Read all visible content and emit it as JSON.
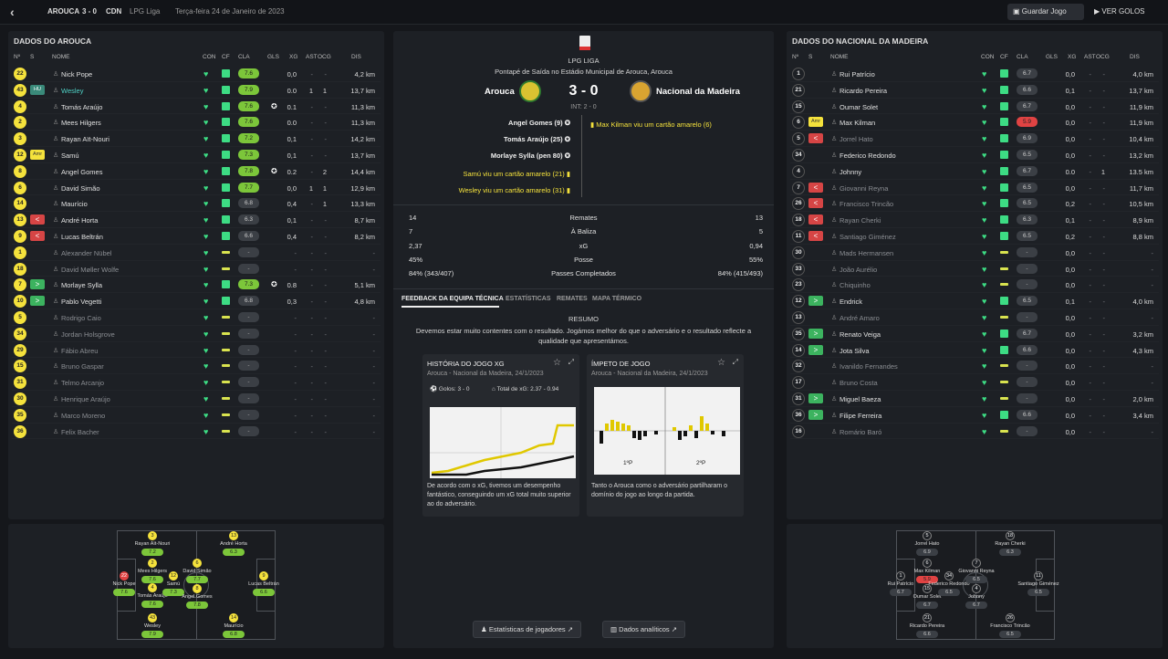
{
  "topbar": {
    "team": "AROUCA",
    "score": "3 - 0",
    "opp": "CDN",
    "comp": "LPG Liga",
    "date": "Terça-feira 24 de Janeiro de 2023",
    "save": "Guardar Jogo",
    "goals": "VER GOLOS"
  },
  "headers": {
    "no": "Nº",
    "s": "S",
    "nome": "NOME",
    "con": "CON",
    "cf": "CF",
    "cla": "CLA",
    "gls": "GLS",
    "xg": "XG",
    "ast": "AST",
    "ocg": "OCG",
    "dis": "DIS"
  },
  "left": {
    "title": "DADOS DO AROUCA",
    "players": [
      {
        "no": "22",
        "name": "Nick Pope",
        "cla": "7.6",
        "xg": "0,0",
        "ast": "-",
        "ocg": "-",
        "dis": "4,2 km",
        "badge": ""
      },
      {
        "no": "43",
        "name": "Wesley",
        "cla": "7.9",
        "xg": "0.0",
        "ast": "1",
        "ocg": "1",
        "dis": "13,7 km",
        "badge": "tel",
        "btxt": "HU"
      },
      {
        "no": "4",
        "name": "Tomás Araújo",
        "cla": "7.6",
        "xg": "0.1",
        "ast": "-",
        "ocg": "-",
        "dis": "11,3 km",
        "badge": "",
        "gl": "⚽"
      },
      {
        "no": "2",
        "name": "Mees Hilgers",
        "cla": "7.6",
        "xg": "0.0",
        "ast": "-",
        "ocg": "-",
        "dis": "11,3 km",
        "badge": ""
      },
      {
        "no": "3",
        "name": "Rayan Aït-Nouri",
        "cla": "7.2",
        "xg": "0,1",
        "ast": "-",
        "ocg": "-",
        "dis": "14,2 km",
        "badge": ""
      },
      {
        "no": "12",
        "name": "Samú",
        "cla": "7.3",
        "xg": "0,1",
        "ast": "-",
        "ocg": "-",
        "dis": "13,7 km",
        "badge": "amr",
        "btxt": "Amr"
      },
      {
        "no": "8",
        "name": "Angel Gomes",
        "cla": "7.8",
        "xg": "0.2",
        "ast": "-",
        "ocg": "2",
        "dis": "14,4 km",
        "badge": "",
        "gl": "⚽"
      },
      {
        "no": "6",
        "name": "David Simão",
        "cla": "7.7",
        "xg": "0,0",
        "ast": "1",
        "ocg": "1",
        "dis": "12,9 km",
        "badge": ""
      },
      {
        "no": "14",
        "name": "Maurício",
        "cla": "6.8",
        "xg": "0,4",
        "ast": "-",
        "ocg": "1",
        "dis": "13,3 km",
        "badge": "",
        "g": 1
      },
      {
        "no": "13",
        "name": "André Horta",
        "cla": "6.3",
        "xg": "0,1",
        "ast": "-",
        "ocg": "-",
        "dis": "8,7 km",
        "badge": "off",
        "btxt": "<",
        "g": 1
      },
      {
        "no": "9",
        "name": "Lucas Beltrán",
        "cla": "6.6",
        "xg": "0,4",
        "ast": "-",
        "ocg": "-",
        "dis": "8,2 km",
        "badge": "off",
        "btxt": "<",
        "g": 1
      },
      {
        "no": "1",
        "name": "Alexander Nübel",
        "cla": "-",
        "xg": "-",
        "ast": "-",
        "ocg": "-",
        "dis": "-",
        "badge": "",
        "dim": 1
      },
      {
        "no": "18",
        "name": "David Møller Wolfe",
        "cla": "-",
        "xg": "-",
        "ast": "-",
        "ocg": "-",
        "dis": "-",
        "badge": "",
        "dim": 1
      },
      {
        "no": "7",
        "name": "Morlaye Sylla",
        "cla": "7.3",
        "xg": "0.8",
        "ast": "-",
        "ocg": "-",
        "dis": "5,1 km",
        "badge": "sub",
        "btxt": ">",
        "gl": "⚽"
      },
      {
        "no": "10",
        "name": "Pablo Vegetti",
        "cla": "6.8",
        "xg": "0,3",
        "ast": "-",
        "ocg": "-",
        "dis": "4,8 km",
        "badge": "sub",
        "btxt": ">",
        "g": 1
      },
      {
        "no": "5",
        "name": "Rodrigo Caio",
        "cla": "-",
        "xg": "-",
        "ast": "-",
        "ocg": "-",
        "dis": "-",
        "badge": "",
        "dim": 1
      },
      {
        "no": "34",
        "name": "Jordan Holsgrove",
        "cla": "-",
        "xg": "-",
        "ast": "-",
        "ocg": "-",
        "dis": "-",
        "badge": "",
        "dim": 1
      },
      {
        "no": "29",
        "name": "Fábio Abreu",
        "cla": "-",
        "xg": "-",
        "ast": "-",
        "ocg": "-",
        "dis": "-",
        "badge": "",
        "dim": 1
      },
      {
        "no": "15",
        "name": "Bruno Gaspar",
        "cla": "-",
        "xg": "-",
        "ast": "-",
        "ocg": "-",
        "dis": "-",
        "badge": "",
        "dim": 1
      },
      {
        "no": "31",
        "name": "Telmo Arcanjo",
        "cla": "-",
        "xg": "-",
        "ast": "-",
        "ocg": "-",
        "dis": "-",
        "badge": "",
        "dim": 1
      },
      {
        "no": "30",
        "name": "Henrique Araújo",
        "cla": "-",
        "xg": "-",
        "ast": "-",
        "ocg": "-",
        "dis": "-",
        "badge": "",
        "dim": 1
      },
      {
        "no": "35",
        "name": "Marco Moreno",
        "cla": "-",
        "xg": "-",
        "ast": "-",
        "ocg": "-",
        "dis": "-",
        "badge": "",
        "dim": 1
      },
      {
        "no": "36",
        "name": "Felix Bacher",
        "cla": "-",
        "xg": "-",
        "ast": "-",
        "ocg": "-",
        "dis": "-",
        "badge": "",
        "dim": 1
      }
    ]
  },
  "right": {
    "title": "DADOS DO NACIONAL DA MADEIRA",
    "players": [
      {
        "no": "1",
        "name": "Rui Patrício",
        "cla": "6.7",
        "xg": "0,0",
        "ast": "-",
        "ocg": "-",
        "dis": "4,0 km",
        "badge": "",
        "g": 1
      },
      {
        "no": "21",
        "name": "Ricardo Pereira",
        "cla": "6.6",
        "xg": "0,1",
        "ast": "-",
        "ocg": "-",
        "dis": "13,7 km",
        "badge": "",
        "g": 1
      },
      {
        "no": "15",
        "name": "Oumar Solet",
        "cla": "6.7",
        "xg": "0,0",
        "ast": "-",
        "ocg": "-",
        "dis": "11,9 km",
        "badge": "",
        "g": 1
      },
      {
        "no": "6",
        "name": "Max Kilman",
        "cla": "5.9",
        "xg": "0,0",
        "ast": "-",
        "ocg": "-",
        "dis": "11,9 km",
        "badge": "amr",
        "btxt": "Amr",
        "r": 1
      },
      {
        "no": "5",
        "name": "Jorrel Hato",
        "cla": "6.9",
        "xg": "0,0",
        "ast": "-",
        "ocg": "-",
        "dis": "10,4 km",
        "badge": "off",
        "btxt": "<",
        "g": 1,
        "dim": 1
      },
      {
        "no": "34",
        "name": "Federico Redondo",
        "cla": "6.5",
        "xg": "0,0",
        "ast": "-",
        "ocg": "-",
        "dis": "13,2 km",
        "badge": "",
        "g": 1
      },
      {
        "no": "4",
        "name": "Johnny",
        "cla": "6.7",
        "xg": "0.0",
        "ast": "-",
        "ocg": "1",
        "dis": "13.5 km",
        "badge": "",
        "g": 1
      },
      {
        "no": "7",
        "name": "Giovanni Reyna",
        "cla": "6.5",
        "xg": "0,0",
        "ast": "-",
        "ocg": "-",
        "dis": "11,7 km",
        "badge": "off",
        "btxt": "<",
        "g": 1,
        "dim": 1
      },
      {
        "no": "26",
        "name": "Francisco Trincão",
        "cla": "6.5",
        "xg": "0,2",
        "ast": "-",
        "ocg": "-",
        "dis": "10,5 km",
        "badge": "off",
        "btxt": "<",
        "g": 1,
        "dim": 1
      },
      {
        "no": "18",
        "name": "Rayan Cherki",
        "cla": "6.3",
        "xg": "0,1",
        "ast": "-",
        "ocg": "-",
        "dis": "8,9 km",
        "badge": "off",
        "btxt": "<",
        "g": 1,
        "dim": 1
      },
      {
        "no": "11",
        "name": "Santiago Giménez",
        "cla": "6.5",
        "xg": "0,2",
        "ast": "-",
        "ocg": "-",
        "dis": "8,8 km",
        "badge": "off",
        "btxt": "<",
        "g": 1,
        "dim": 1
      },
      {
        "no": "30",
        "name": "Mads Hermansen",
        "cla": "-",
        "xg": "0,0",
        "ast": "-",
        "ocg": "-",
        "dis": "-",
        "badge": "",
        "dim": 1
      },
      {
        "no": "33",
        "name": "João Aurélio",
        "cla": "-",
        "xg": "0,0",
        "ast": "-",
        "ocg": "-",
        "dis": "-",
        "badge": "",
        "dim": 1
      },
      {
        "no": "23",
        "name": "Chiquinho",
        "cla": "-",
        "xg": "0,0",
        "ast": "-",
        "ocg": "-",
        "dis": "-",
        "badge": "",
        "dim": 1
      },
      {
        "no": "12",
        "name": "Endrick",
        "cla": "6.5",
        "xg": "0,1",
        "ast": "-",
        "ocg": "-",
        "dis": "4,0 km",
        "badge": "sub",
        "btxt": ">",
        "g": 1
      },
      {
        "no": "13",
        "name": "André Amaro",
        "cla": "-",
        "xg": "0,0",
        "ast": "-",
        "ocg": "-",
        "dis": "-",
        "badge": "",
        "dim": 1
      },
      {
        "no": "35",
        "name": "Renato Veiga",
        "cla": "6.7",
        "xg": "0,0",
        "ast": "-",
        "ocg": "-",
        "dis": "3,2 km",
        "badge": "sub",
        "btxt": ">",
        "g": 1
      },
      {
        "no": "14",
        "name": "Jota Silva",
        "cla": "6.6",
        "xg": "0,0",
        "ast": "-",
        "ocg": "-",
        "dis": "4,3 km",
        "badge": "sub",
        "btxt": ">",
        "g": 1
      },
      {
        "no": "32",
        "name": "Ivanildo Fernandes",
        "cla": "-",
        "xg": "0,0",
        "ast": "-",
        "ocg": "-",
        "dis": "-",
        "badge": "",
        "dim": 1
      },
      {
        "no": "17",
        "name": "Bruno Costa",
        "cla": "-",
        "xg": "0,0",
        "ast": "-",
        "ocg": "-",
        "dis": "-",
        "badge": "",
        "dim": 1
      },
      {
        "no": "31",
        "name": "Miguel Baeza",
        "cla": "-",
        "xg": "0,0",
        "ast": "-",
        "ocg": "-",
        "dis": "2,0 km",
        "badge": "sub",
        "btxt": ">"
      },
      {
        "no": "36",
        "name": "Filipe Ferreira",
        "cla": "6.6",
        "xg": "0,0",
        "ast": "-",
        "ocg": "-",
        "dis": "3,4 km",
        "badge": "sub",
        "btxt": ">",
        "g": 1
      },
      {
        "no": "16",
        "name": "Romário Baró",
        "cla": "-",
        "xg": "0,0",
        "ast": "-",
        "ocg": "-",
        "dis": "-",
        "badge": "",
        "dim": 1
      }
    ]
  },
  "center": {
    "comp": "LPG LIGA",
    "kickoff": "Pontapé de Saída no Estádio Municipal de Arouca, Arouca",
    "home": "Arouca",
    "away": "Nacional da Madeira",
    "score": "3 - 0",
    "ht": "INT: 2 - 0",
    "events_home": [
      "Angel Gomes (9)",
      "Tomás Araújo (25)",
      "Morlaye Sylla (pen 80)",
      "Samú viu um cartão amarelo (21)",
      "Wesley viu um cartão amarelo (31)"
    ],
    "events_away": [
      "Max Kilman viu um cartão amarelo (6)"
    ],
    "stats": [
      {
        "h": "14",
        "l": "Remates",
        "a": "13"
      },
      {
        "h": "7",
        "l": "À Baliza",
        "a": "5"
      },
      {
        "h": "2,37",
        "l": "xG",
        "a": "0,94"
      },
      {
        "h": "45%",
        "l": "Posse",
        "a": "55%"
      },
      {
        "h": "84% (343/407)",
        "l": "Passes Completados",
        "a": "84% (415/493)"
      }
    ],
    "tabs": [
      "FEEDBACK DA EQUIPA TÉCNICA",
      "ESTATÍSTICAS",
      "REMATES",
      "MAPA TÉRMICO"
    ],
    "resumo": "RESUMO",
    "resumo_text": "Devemos estar muito contentes com o resultado. Jogámos melhor do que o adversário e o resultado reflecte a qualidade que apresentámos.",
    "card1": {
      "title": "HISTÓRIA DO JOGO XG",
      "sub": "Arouca - Nacional da Madeira, 24/1/2023",
      "goals": "Golos: 3 - 0",
      "xg": "Total de xG: 2.37 - 0.94",
      "text": "De acordo com o xG, tivemos um desempenho fantástico, conseguindo um xG total muito superior ao do adversário."
    },
    "card2": {
      "title": "ÍMPETO DE JOGO",
      "sub": "Arouca - Nacional da Madeira, 24/1/2023",
      "p1": "1ºP",
      "p2": "2ºP",
      "text": "Tanto o Arouca como o adversário partilharam o domínio do jogo ao longo da partida."
    },
    "btn1": "Estatísticas de jogadores",
    "btn2": "Dados analíticos"
  }
}
